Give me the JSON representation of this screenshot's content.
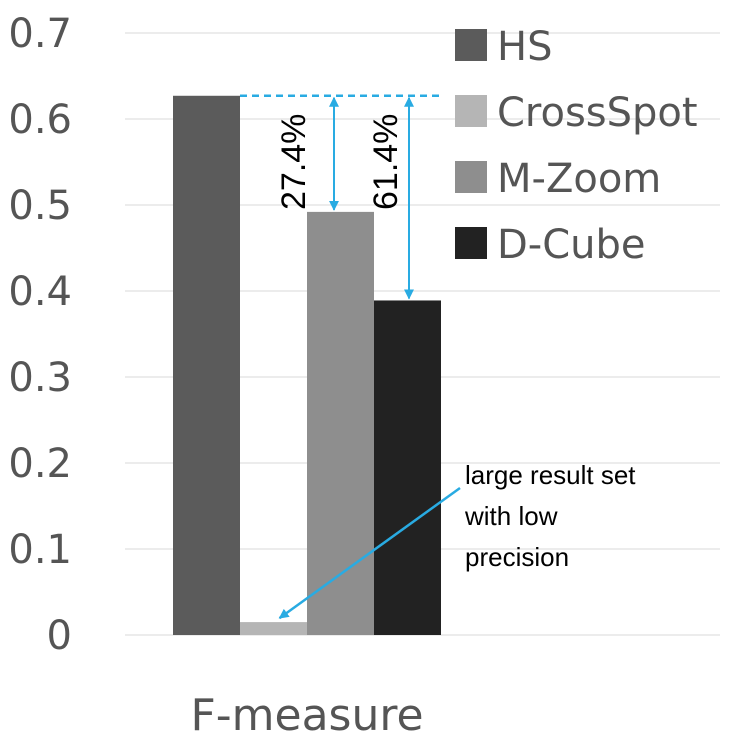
{
  "chart_data": {
    "type": "bar",
    "categories": [
      "F-measure"
    ],
    "xlabel": "F-measure",
    "ylim": [
      0,
      0.7
    ],
    "yticks": [
      "0",
      "0.1",
      "0.2",
      "0.3",
      "0.4",
      "0.5",
      "0.6",
      "0.7"
    ],
    "grid": true,
    "legend_position": "top-right",
    "series": [
      {
        "name": "HS",
        "values": [
          0.627
        ],
        "color": "#5b5b5b"
      },
      {
        "name": "CrossSpot",
        "values": [
          0.015
        ],
        "color": "#b5b5b5"
      },
      {
        "name": "M-Zoom",
        "values": [
          0.492
        ],
        "color": "#8e8e8e"
      },
      {
        "name": "D-Cube",
        "values": [
          0.389
        ],
        "color": "#222222"
      }
    ],
    "annotations": {
      "mzoom_pct": "27.4%",
      "dcube_pct": "61.4%",
      "note_lines": [
        "large result set",
        "with low",
        "precision"
      ],
      "arrow_color": "#29abe2"
    }
  }
}
